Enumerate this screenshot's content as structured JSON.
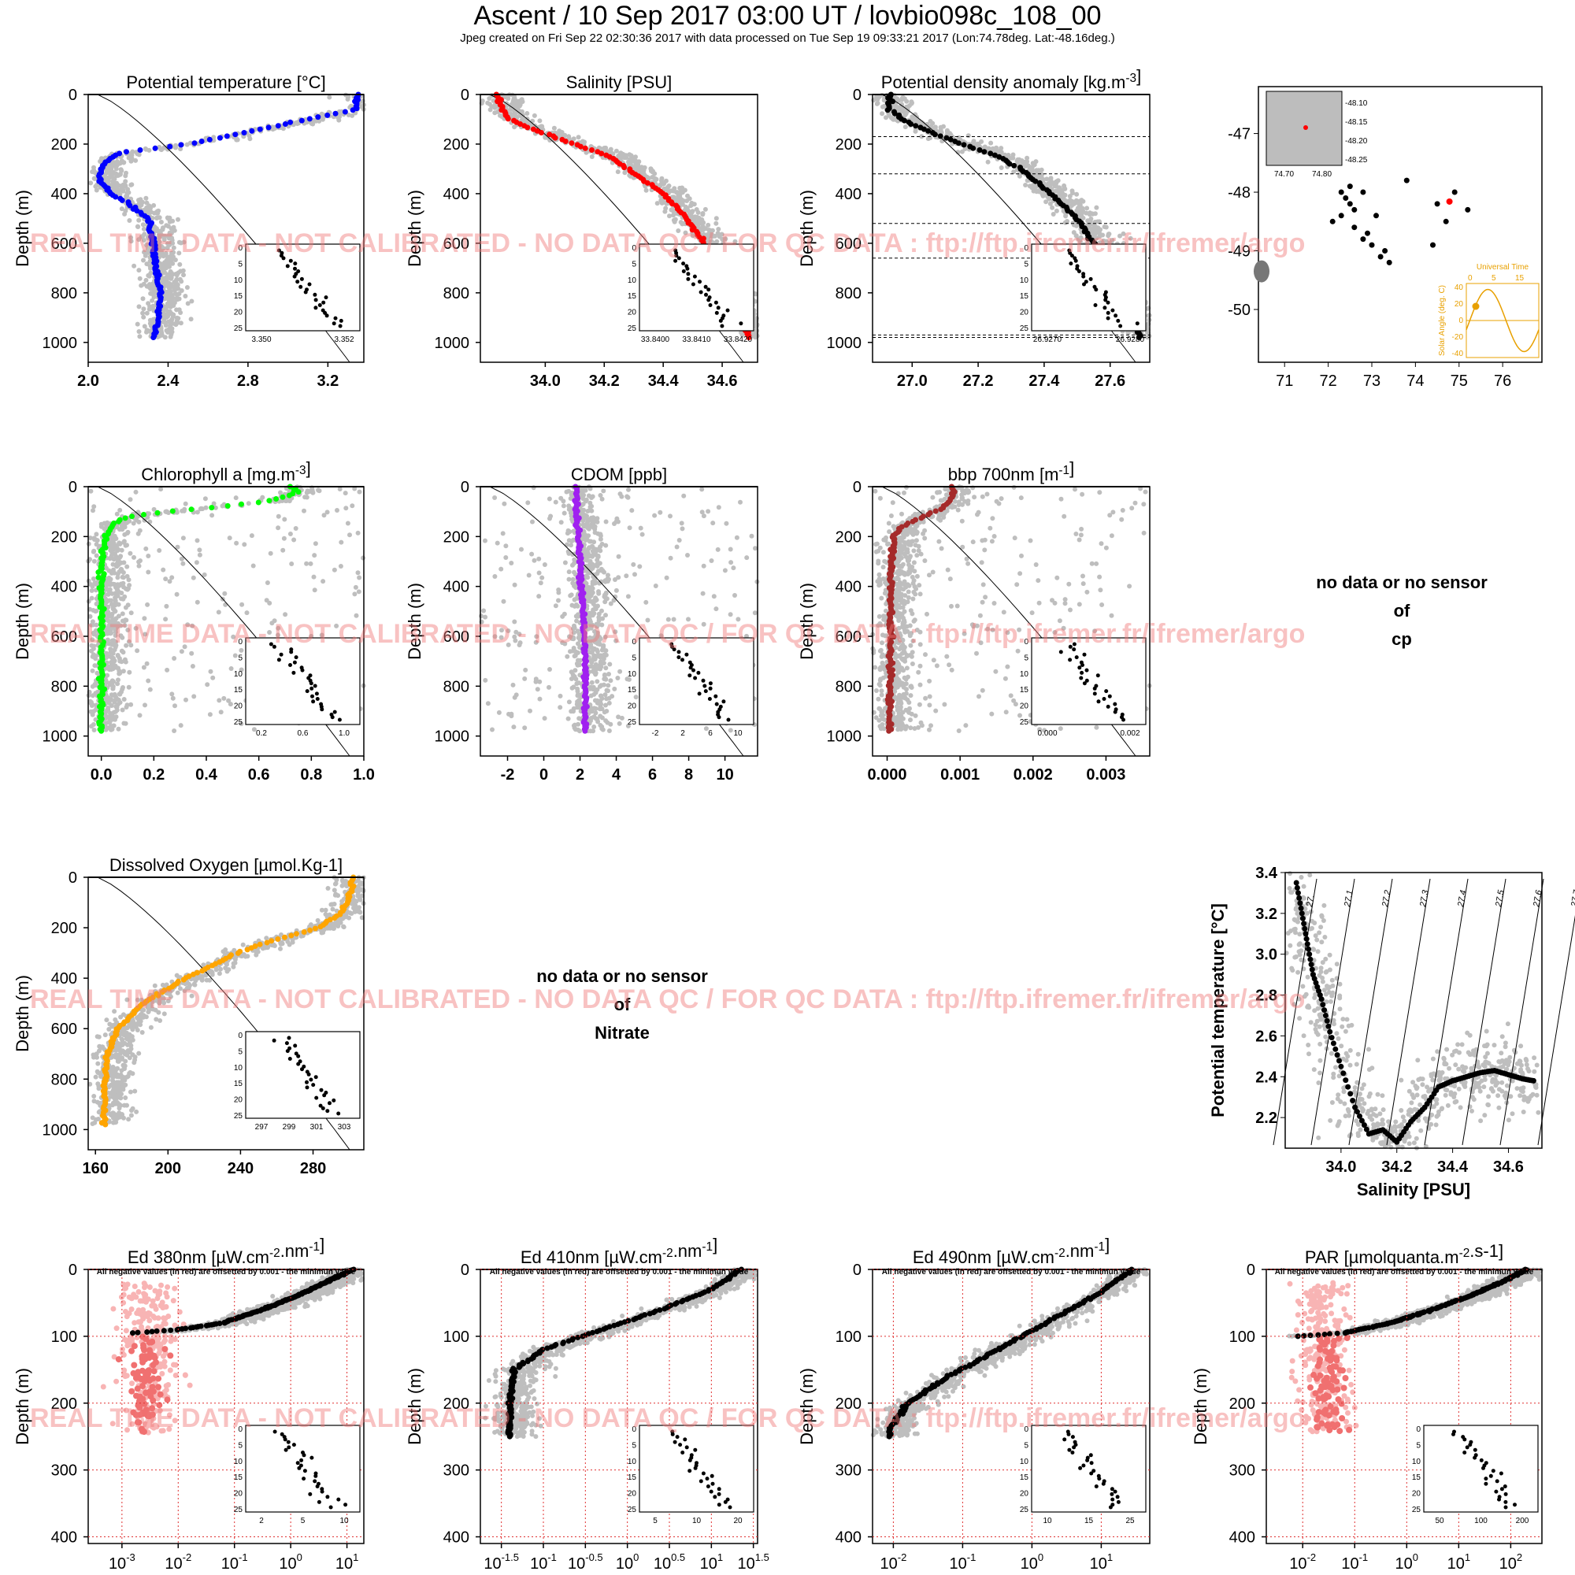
{
  "page": {
    "title": "Ascent / 10 Sep 2017 03:00 UT /  lovbio098c_108_00",
    "subtitle": "Jpeg created on Fri Sep 22 02:30:36 2017 with data processed on Tue Sep 19 09:33:21 2017 (Lon:74.78deg. Lat:-48.16deg.)",
    "watermark": "REAL TIME DATA - NOT CALIBRATED - NO DATA QC   /  FOR QC DATA : ftp://ftp.ifremer.fr/ifremer/argo",
    "nodata_cp": [
      "no data or no sensor",
      "of",
      "cp"
    ],
    "nodata_nitrate": [
      "no data or no sensor",
      "of",
      "Nitrate"
    ]
  },
  "colors": {
    "cloud": "#bebebe",
    "temperature": "#0000ff",
    "salinity": "#ff0000",
    "density": "#000000",
    "chlorophyll": "#00ff00",
    "cdom": "#a020f0",
    "bbp": "#a52a2a",
    "oxygen": "#ffa500",
    "negative": "#f07070",
    "negative_cloud": "#f8b4b4",
    "orange": "#e8a000"
  },
  "chart_data": [
    {
      "id": "temperature",
      "type": "scatter",
      "title": "Potential temperature [°C]",
      "ylabel": "Depth (m)",
      "xlim": [
        2.0,
        3.38
      ],
      "ylim": [
        1080,
        0
      ],
      "xticks": [
        "2.0",
        "2.4",
        "2.8",
        "3.2"
      ],
      "xtick_values": [
        2.0,
        2.4,
        2.8,
        3.2
      ],
      "yticks": [
        "0",
        "200",
        "400",
        "600",
        "800",
        "1000"
      ],
      "ytick_values": [
        0,
        200,
        400,
        600,
        800,
        1000
      ],
      "profile": {
        "depth": [
          0,
          60,
          100,
          150,
          200,
          230,
          250,
          300,
          350,
          400,
          450,
          500,
          600,
          700,
          800,
          900,
          980
        ],
        "value": [
          3.35,
          3.34,
          3.1,
          2.8,
          2.5,
          2.2,
          2.12,
          2.06,
          2.06,
          2.12,
          2.22,
          2.3,
          2.33,
          2.34,
          2.36,
          2.35,
          2.33
        ]
      },
      "inset": {
        "xticks": [
          "3.350",
          "3.352"
        ],
        "yticks": [
          "0",
          "5",
          "10",
          "15",
          "20",
          "25"
        ]
      }
    },
    {
      "id": "salinity",
      "type": "scatter",
      "title": "Salinity [PSU]",
      "ylabel": "Depth (m)",
      "xlim": [
        33.78,
        34.72
      ],
      "ylim": [
        1080,
        0
      ],
      "xticks": [
        "34.0",
        "34.2",
        "34.4",
        "34.6"
      ],
      "xtick_values": [
        34.0,
        34.2,
        34.4,
        34.6
      ],
      "yticks": [
        "0",
        "200",
        "400",
        "600",
        "800",
        "1000"
      ],
      "ytick_values": [
        0,
        200,
        400,
        600,
        800,
        1000
      ],
      "profile": {
        "depth": [
          0,
          60,
          100,
          150,
          200,
          250,
          300,
          400,
          500,
          600,
          700,
          800,
          900,
          980
        ],
        "value": [
          33.84,
          33.85,
          33.88,
          33.98,
          34.1,
          34.22,
          34.28,
          34.4,
          34.48,
          34.54,
          34.58,
          34.62,
          34.66,
          34.69
        ]
      },
      "inset": {
        "xticks": [
          "33.8400",
          "33.8410",
          "33.8420"
        ],
        "yticks": [
          "0",
          "5",
          "10",
          "15",
          "20",
          "25"
        ]
      }
    },
    {
      "id": "density",
      "type": "scatter",
      "title": "Potential density anomaly [kg.m-3]",
      "ylabel": "Depth (m)",
      "xlim": [
        26.88,
        27.72
      ],
      "ylim": [
        1080,
        0
      ],
      "xticks": [
        "27.0",
        "27.2",
        "27.4",
        "27.6"
      ],
      "xtick_values": [
        27.0,
        27.2,
        27.4,
        27.6
      ],
      "yticks": [
        "0",
        "200",
        "400",
        "600",
        "800",
        "1000"
      ],
      "ytick_values": [
        0,
        200,
        400,
        600,
        800,
        1000
      ],
      "hlines": [
        170,
        320,
        520,
        660,
        970,
        980
      ],
      "profile": {
        "depth": [
          0,
          60,
          100,
          150,
          200,
          250,
          300,
          400,
          500,
          600,
          700,
          800,
          900,
          980
        ],
        "value": [
          26.93,
          26.93,
          26.97,
          27.05,
          27.15,
          27.26,
          27.33,
          27.42,
          27.5,
          27.55,
          27.6,
          27.64,
          27.67,
          27.69
        ]
      },
      "inset": {
        "xticks": [
          "26.9270",
          "26.9280"
        ],
        "yticks": [
          "0",
          "5",
          "10",
          "15",
          "20",
          "25"
        ]
      }
    },
    {
      "id": "chlorophyll",
      "type": "scatter",
      "title": "Chlorophyll a [mg.m-3]",
      "ylabel": "Depth (m)",
      "xlim": [
        -0.05,
        1.0
      ],
      "ylim": [
        1080,
        0
      ],
      "xticks": [
        "0.0",
        "0.2",
        "0.4",
        "0.6",
        "0.8",
        "1.0"
      ],
      "xtick_values": [
        0.0,
        0.2,
        0.4,
        0.6,
        0.8,
        1.0
      ],
      "yticks": [
        "0",
        "200",
        "400",
        "600",
        "800",
        "1000"
      ],
      "ytick_values": [
        0,
        200,
        400,
        600,
        800,
        1000
      ],
      "profile": {
        "depth": [
          0,
          20,
          40,
          60,
          80,
          100,
          120,
          150,
          200,
          300,
          500,
          800,
          980
        ],
        "value": [
          0.72,
          0.75,
          0.7,
          0.62,
          0.45,
          0.25,
          0.1,
          0.04,
          0.02,
          0.0,
          0.0,
          0.0,
          0.0
        ]
      },
      "inset": {
        "xticks": [
          "0.2",
          "0.6",
          "1.0"
        ],
        "yticks": [
          "0",
          "5",
          "10",
          "15",
          "20",
          "25"
        ]
      }
    },
    {
      "id": "cdom",
      "type": "scatter",
      "title": "CDOM [ppb]",
      "ylabel": "Depth (m)",
      "xlim": [
        -3.5,
        11.8
      ],
      "ylim": [
        1080,
        0
      ],
      "xticks": [
        "-2",
        "0",
        "2",
        "4",
        "6",
        "8",
        "10"
      ],
      "xtick_values": [
        -2,
        0,
        2,
        4,
        6,
        8,
        10
      ],
      "yticks": [
        "0",
        "200",
        "400",
        "600",
        "800",
        "1000"
      ],
      "ytick_values": [
        0,
        200,
        400,
        600,
        800,
        1000
      ],
      "profile": {
        "depth": [
          0,
          100,
          200,
          300,
          400,
          500,
          600,
          700,
          800,
          900,
          980
        ],
        "value": [
          1.8,
          1.8,
          1.9,
          2.0,
          2.1,
          2.2,
          2.2,
          2.3,
          2.3,
          2.3,
          2.3
        ]
      },
      "inset": {
        "xticks": [
          "-2",
          "2",
          "6",
          "10"
        ],
        "yticks": [
          "0",
          "5",
          "10",
          "15",
          "20",
          "25"
        ]
      }
    },
    {
      "id": "bbp",
      "type": "scatter",
      "title": "bbp 700nm [m-1]",
      "ylabel": "Depth (m)",
      "xlim": [
        -0.0002,
        0.0036
      ],
      "ylim": [
        1080,
        0
      ],
      "xticks": [
        "0.000",
        "0.001",
        "0.002",
        "0.003"
      ],
      "xtick_values": [
        0.0,
        0.001,
        0.002,
        0.003
      ],
      "yticks": [
        "0",
        "200",
        "400",
        "600",
        "800",
        "1000"
      ],
      "ytick_values": [
        0,
        200,
        400,
        600,
        800,
        1000
      ],
      "profile": {
        "depth": [
          0,
          40,
          80,
          120,
          160,
          200,
          300,
          500,
          800,
          980
        ],
        "value": [
          0.0009,
          0.0009,
          0.0008,
          0.0005,
          0.0002,
          0.0001,
          6e-05,
          5e-05,
          4e-05,
          4e-05
        ]
      },
      "inset": {
        "xticks": [
          "0.000",
          "0.002"
        ],
        "yticks": [
          "0",
          "5",
          "10",
          "15",
          "20",
          "25"
        ]
      }
    },
    {
      "id": "oxygen",
      "type": "scatter",
      "title": "Dissolved Oxygen [µmol.Kg-1]",
      "ylabel": "Depth (m)",
      "xlim": [
        156,
        308
      ],
      "ylim": [
        1080,
        0
      ],
      "xticks": [
        "160",
        "200",
        "240",
        "280"
      ],
      "xtick_values": [
        160,
        200,
        240,
        280
      ],
      "yticks": [
        "0",
        "200",
        "400",
        "600",
        "800",
        "1000"
      ],
      "ytick_values": [
        0,
        200,
        400,
        600,
        800,
        1000
      ],
      "profile": {
        "depth": [
          0,
          60,
          100,
          150,
          200,
          250,
          300,
          400,
          500,
          600,
          700,
          800,
          900,
          980
        ],
        "value": [
          302,
          301,
          299,
          294,
          283,
          258,
          238,
          210,
          186,
          172,
          167,
          165,
          165,
          165
        ]
      },
      "inset": {
        "xticks": [
          "297",
          "299",
          "301",
          "303"
        ],
        "yticks": [
          "0",
          "5",
          "10",
          "15",
          "20",
          "25"
        ]
      }
    },
    {
      "id": "ed380",
      "type": "scatter",
      "title": "Ed 380nm [µW.cm-2.nm-1]",
      "subtitle": "All negative values (in red) are offsetted by 0.001 - the minimun value",
      "ylabel": "Depth (m)",
      "xscale": "log",
      "xlim": [
        -3.6,
        1.3
      ],
      "ylim": [
        410,
        0
      ],
      "xtick_values": [
        -3,
        -2,
        -1,
        0,
        1
      ],
      "xtick_exps": [
        "-3",
        "-2",
        "-1",
        "0",
        "1"
      ],
      "yticks": [
        "0",
        "100",
        "200",
        "300",
        "400"
      ],
      "ytick_values": [
        0,
        100,
        200,
        300,
        400
      ],
      "profile": {
        "depth": [
          0,
          20,
          40,
          60,
          80,
          90,
          95
        ],
        "log_value": [
          1.1,
          0.6,
          0.1,
          -0.5,
          -1.2,
          -2.0,
          -2.8
        ]
      },
      "inset": {
        "xticks": [
          "2",
          "5",
          "10"
        ],
        "yticks": [
          "0",
          "5",
          "10",
          "15",
          "20",
          "25"
        ]
      }
    },
    {
      "id": "ed410",
      "type": "scatter",
      "title": "Ed 410nm [µW.cm-2.nm-1]",
      "subtitle": "All negative values (in red) are offsetted by 0.001 - the minimun value",
      "ylabel": "Depth (m)",
      "xscale": "log",
      "xlim": [
        -1.75,
        1.55
      ],
      "ylim": [
        410,
        0
      ],
      "xtick_values": [
        -1.5,
        -1,
        -0.5,
        0,
        0.5,
        1,
        1.5
      ],
      "xtick_exps": [
        "-1.5",
        "-1",
        "-0.5",
        "0",
        "0.5",
        "1",
        "1.5"
      ],
      "yticks": [
        "0",
        "100",
        "200",
        "300",
        "400"
      ],
      "ytick_values": [
        0,
        100,
        200,
        300,
        400
      ],
      "profile": {
        "depth": [
          0,
          30,
          60,
          90,
          120,
          150,
          200,
          250
        ],
        "log_value": [
          1.35,
          1.0,
          0.4,
          -0.3,
          -1.0,
          -1.35,
          -1.4,
          -1.4
        ]
      },
      "inset": {
        "xticks": [
          "5",
          "10",
          "20"
        ],
        "yticks": [
          "0",
          "5",
          "10",
          "15",
          "20",
          "25"
        ]
      }
    },
    {
      "id": "ed490",
      "type": "scatter",
      "title": "Ed 490nm [µW.cm-2.nm-1]",
      "subtitle": "All negative values (in red) are offsetted by 0.001 - the minimun value",
      "ylabel": "Depth (m)",
      "xscale": "log",
      "xlim": [
        -2.3,
        1.7
      ],
      "ylim": [
        410,
        0
      ],
      "xtick_values": [
        -2,
        -1,
        0,
        1
      ],
      "xtick_exps": [
        "-2",
        "-1",
        "0",
        "1"
      ],
      "yticks": [
        "0",
        "100",
        "200",
        "300",
        "400"
      ],
      "ytick_values": [
        0,
        100,
        200,
        300,
        400
      ],
      "profile": {
        "depth": [
          0,
          40,
          80,
          120,
          160,
          200,
          240,
          250
        ],
        "log_value": [
          1.45,
          0.9,
          0.2,
          -0.5,
          -1.2,
          -1.8,
          -2.05,
          -2.05
        ]
      },
      "inset": {
        "xticks": [
          "10",
          "15",
          "25"
        ],
        "yticks": [
          "0",
          "5",
          "10",
          "15",
          "20",
          "25"
        ]
      }
    },
    {
      "id": "par",
      "type": "scatter",
      "title": "PAR [µmolquanta.m-2.s-1]",
      "subtitle": "All negative values (in red) are offsetted by 0.001 - the minimun value",
      "ylabel": "Depth (m)",
      "xscale": "log",
      "xlim": [
        -2.7,
        2.6
      ],
      "ylim": [
        410,
        0
      ],
      "xtick_values": [
        -2,
        -1,
        0,
        1,
        2
      ],
      "xtick_exps": [
        "-2",
        "-1",
        "0",
        "1",
        "2"
      ],
      "yticks": [
        "0",
        "100",
        "200",
        "300",
        "400"
      ],
      "ytick_values": [
        0,
        100,
        200,
        300,
        400
      ],
      "profile": {
        "depth": [
          0,
          20,
          40,
          60,
          80,
          95,
          100
        ],
        "log_value": [
          2.3,
          1.8,
          1.2,
          0.5,
          -0.3,
          -1.2,
          -2.1
        ]
      },
      "inset": {
        "xticks": [
          "50",
          "100",
          "200"
        ],
        "yticks": [
          "0",
          "5",
          "10",
          "15",
          "20",
          "25"
        ]
      }
    },
    {
      "id": "ts",
      "type": "scatter",
      "title": "",
      "xlabel": "Salinity [PSU]",
      "ylabel": "Potential temperature [°C]",
      "xlim": [
        33.8,
        34.72
      ],
      "ylim": [
        2.05,
        3.4
      ],
      "xticks": [
        "34.0",
        "34.2",
        "34.4",
        "34.6"
      ],
      "xtick_values": [
        34.0,
        34.2,
        34.4,
        34.6
      ],
      "yticks": [
        "2.2",
        "2.4",
        "2.6",
        "2.8",
        "3.0",
        "3.2",
        "3.4"
      ],
      "ytick_values": [
        2.2,
        2.4,
        2.6,
        2.8,
        3.0,
        3.2,
        3.4
      ],
      "isopycnals": [
        "27.",
        "27.1",
        "27.2",
        "27.3",
        "27.4",
        "27.5",
        "27.6",
        "27.7"
      ],
      "profile": {
        "salinity": [
          33.84,
          33.86,
          33.88,
          33.9,
          33.93,
          33.96,
          34.0,
          34.05,
          34.1,
          34.15,
          34.2,
          34.25,
          34.3,
          34.35,
          34.4,
          34.45,
          34.5,
          34.55,
          34.6,
          34.65,
          34.69
        ],
        "temperature": [
          3.35,
          3.2,
          3.05,
          2.9,
          2.78,
          2.62,
          2.45,
          2.25,
          2.12,
          2.14,
          2.08,
          2.18,
          2.25,
          2.35,
          2.38,
          2.4,
          2.42,
          2.43,
          2.41,
          2.39,
          2.38
        ]
      }
    },
    {
      "id": "map",
      "type": "scatter",
      "title": "",
      "xlim": [
        70.4,
        76.9
      ],
      "ylim": [
        -50.9,
        -46.2
      ],
      "xticks": [
        "71",
        "72",
        "73",
        "74",
        "75",
        "76"
      ],
      "xtick_values": [
        71,
        72,
        73,
        74,
        75,
        76
      ],
      "yticks": [
        "-47",
        "-48",
        "-49",
        "-50"
      ],
      "ytick_values": [
        -47,
        -48,
        -49,
        -50
      ],
      "positions": {
        "lon": [
          72.1,
          72.3,
          72.5,
          72.6,
          72.8,
          73.0,
          73.2,
          73.4,
          73.3,
          72.9,
          72.6,
          72.4,
          72.3,
          72.5,
          72.8,
          73.1,
          73.8,
          74.5,
          74.7,
          74.9,
          75.2,
          74.4
        ],
        "lat": [
          -48.5,
          -48.4,
          -48.2,
          -48.6,
          -48.8,
          -48.9,
          -49.1,
          -49.2,
          -49.0,
          -48.7,
          -48.3,
          -48.1,
          -48.0,
          -47.9,
          -48.0,
          -48.4,
          -47.8,
          -48.2,
          -48.5,
          -48.0,
          -48.3,
          -48.9
        ]
      },
      "current": {
        "lon": 74.78,
        "lat": -48.16
      },
      "inset_zoom": {
        "xticks": [
          "74.70",
          "74.80"
        ],
        "yticks": [
          "-48.10",
          "-48.15",
          "-48.20",
          "-48.25"
        ]
      },
      "solar": {
        "title": "Universal Time",
        "ylabel": "Solar Angle (deg. C)",
        "xticks": [
          "0",
          "5",
          "15"
        ],
        "yticks": [
          "40",
          "20",
          "0",
          "-20",
          "-40"
        ],
        "current_hour": 3,
        "current_angle": 11
      }
    }
  ]
}
